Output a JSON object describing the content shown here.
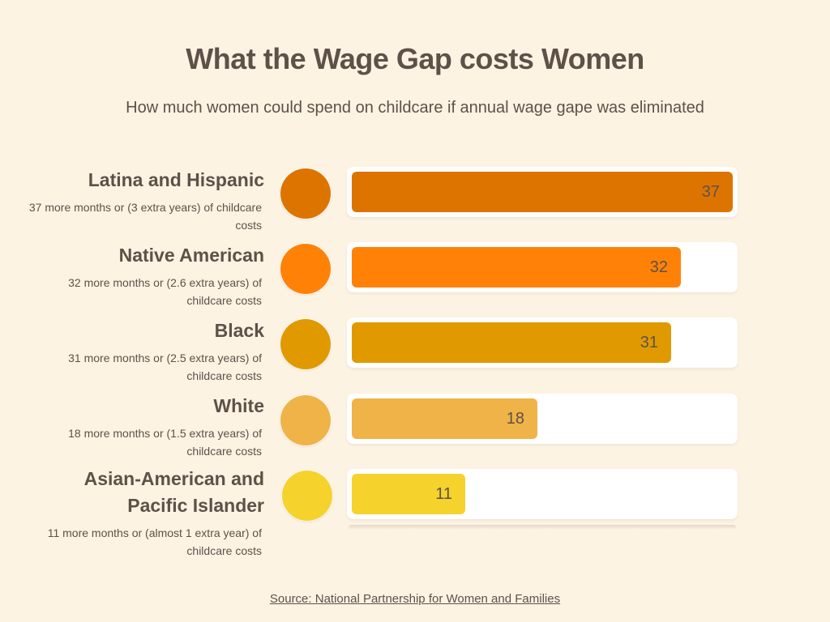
{
  "title": "What the Wage Gap costs Women",
  "subtitle": "How much women could spend on childcare if annual wage gape was eliminated",
  "source": "Source: National Partnership for Women and Families",
  "chart_data": {
    "type": "bar",
    "orientation": "horizontal",
    "xlim": [
      0,
      37
    ],
    "categories": [
      "Latina and Hispanic",
      "Native American",
      "Black",
      "White",
      "Asian-American and Pacific Islander"
    ],
    "values": [
      37,
      32,
      31,
      18,
      11
    ],
    "value_labels": [
      "37",
      "32",
      "31",
      "18",
      "11"
    ],
    "descriptions": [
      "37 more months or (3 extra years) of childcare costs",
      "32 more months or (2.6 extra years) of childcare costs",
      "31 more months or (2.5 extra years) of childcare costs",
      "18 more months or (1.5 extra years) of childcare costs",
      "11 more months or (almost 1 extra year) of childcare costs"
    ],
    "colors": [
      "#dd7400",
      "#ff8207",
      "#e09a00",
      "#f0b348",
      "#f6d22c"
    ]
  }
}
